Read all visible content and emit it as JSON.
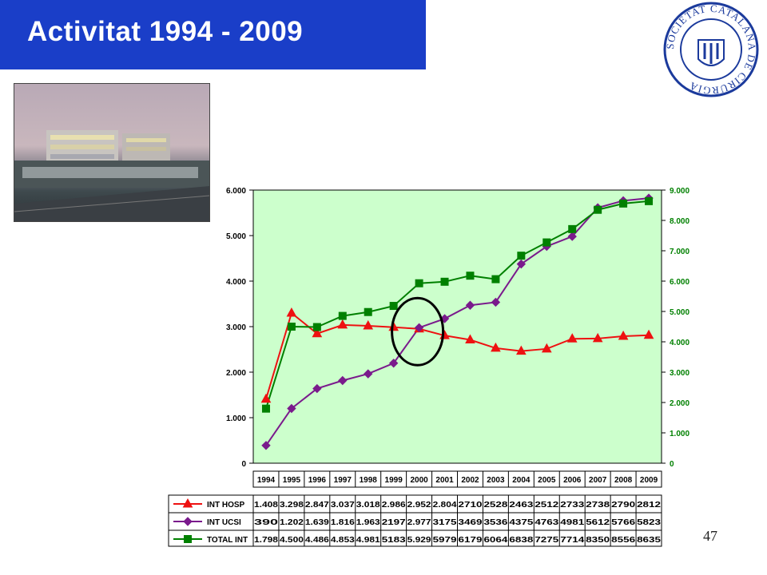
{
  "slide": {
    "title": "Activitat 1994 - 2009",
    "page_number": "47",
    "logo_text": "SOCIETAT CATALANA DE CIRURGIA"
  },
  "colors": {
    "title_bg": "#1a3ec8",
    "plot_bg": "#ccffcc",
    "hosp": "#ee1111",
    "ucsi": "#7a1a8c",
    "total": "#008000",
    "circle": "#000000"
  },
  "chart_data": {
    "type": "line",
    "categories": [
      "1994",
      "1995",
      "1996",
      "1997",
      "1998",
      "1999",
      "2000",
      "2001",
      "2002",
      "2003",
      "2004",
      "2005",
      "2006",
      "2007",
      "2008",
      "2009"
    ],
    "y_left": {
      "ylim": [
        0,
        6000
      ],
      "ticks": [
        "0",
        "1.000",
        "2.000",
        "3.000",
        "4.000",
        "5.000",
        "6.000"
      ],
      "tick_values": [
        0,
        1000,
        2000,
        3000,
        4000,
        5000,
        6000
      ]
    },
    "y_right": {
      "ylim": [
        0,
        9000
      ],
      "ticks": [
        "0",
        "1.000",
        "2.000",
        "3.000",
        "4.000",
        "5.000",
        "6.000",
        "7.000",
        "8.000",
        "9.000"
      ],
      "tick_values": [
        0,
        1000,
        2000,
        3000,
        4000,
        5000,
        6000,
        7000,
        8000,
        9000
      ]
    },
    "series": [
      {
        "name": "INT HOSP",
        "axis": "left",
        "marker": "triangle",
        "values": [
          1408,
          3298,
          2847,
          3037,
          3018,
          2986,
          2952,
          2804,
          2710,
          2528,
          2463,
          2512,
          2733,
          2738,
          2790,
          2812
        ],
        "labels": [
          "1.408",
          "3.298",
          "2.847",
          "3.037",
          "3.018",
          "2.986",
          "2.952",
          "2.804",
          "2710",
          "2528",
          "2463",
          "2512",
          "2733",
          "2738",
          "2790",
          "2812"
        ]
      },
      {
        "name": "INT UCSI",
        "axis": "left",
        "marker": "diamond",
        "values": [
          390,
          1202,
          1639,
          1816,
          1963,
          2197,
          2977,
          3175,
          3469,
          3536,
          4375,
          4763,
          4981,
          5612,
          5766,
          5823
        ],
        "labels": [
          "390",
          "1.202",
          "1.639",
          "1.816",
          "1.963",
          "2197",
          "2.977",
          "3175",
          "3469",
          "3536",
          "4375",
          "4763",
          "4981",
          "5612",
          "5766",
          "5823"
        ]
      },
      {
        "name": "TOTAL INT",
        "axis": "right",
        "marker": "square",
        "values": [
          1798,
          4500,
          4486,
          4853,
          4981,
          5183,
          5929,
          5979,
          6179,
          6064,
          6838,
          7275,
          7714,
          8350,
          8556,
          8635
        ],
        "labels": [
          "1.798",
          "4.500",
          "4.486",
          "4.853",
          "4.981",
          "5183",
          "5.929",
          "5979",
          "6179",
          "6064",
          "6838",
          "7275",
          "7714",
          "8350",
          "8556",
          "8635"
        ]
      }
    ]
  }
}
